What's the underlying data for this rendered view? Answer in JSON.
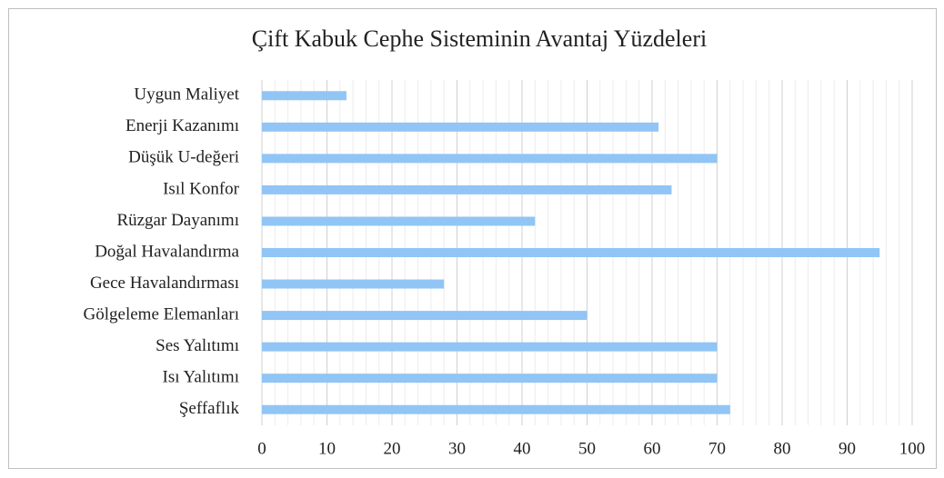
{
  "chart_data": {
    "type": "bar",
    "orientation": "horizontal",
    "title": "Çift Kabuk Cephe Sisteminin Avantaj Yüzdeleri",
    "categories": [
      "Uygun Maliyet",
      "Enerji Kazanımı",
      "Düşük U-değeri",
      "Isıl Konfor",
      "Rüzgar Dayanımı",
      "Doğal Havalandırma",
      "Gece Havalandırması",
      "Gölgeleme Elemanları",
      "Ses Yalıtımı",
      "Isı Yalıtımı",
      "Şeffaflık"
    ],
    "values": [
      13,
      61,
      70,
      63,
      42,
      95,
      28,
      50,
      70,
      70,
      72
    ],
    "color": "#91c5f5",
    "xlim": [
      0,
      100
    ],
    "xticks": [
      0,
      10,
      20,
      30,
      40,
      50,
      60,
      70,
      80,
      90,
      100
    ],
    "xticks_minor": [
      2,
      4,
      6,
      8,
      12,
      14,
      16,
      18,
      22,
      24,
      26,
      28,
      32,
      34,
      36,
      38,
      42,
      44,
      46,
      48,
      52,
      54,
      56,
      58,
      62,
      64,
      66,
      68,
      72,
      74,
      76,
      78,
      82,
      84,
      86,
      88,
      92,
      94,
      96,
      98
    ],
    "grid": true
  }
}
